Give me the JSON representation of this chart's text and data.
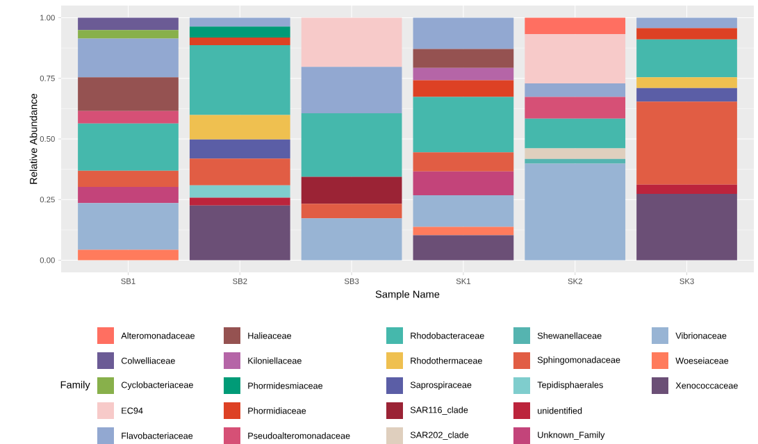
{
  "chart_data": {
    "type": "bar",
    "stacked": true,
    "xlabel": "Sample Name",
    "ylabel": "Relative Abundance",
    "legend_title": "Family",
    "legend": "bottom",
    "grid": true,
    "categories": [
      "SB1",
      "SB2",
      "SB3",
      "SK1",
      "SK2",
      "SK3"
    ],
    "ylim": [
      -0.05,
      1.05
    ],
    "yticks": [
      {
        "value": 0,
        "label": "0.00"
      },
      {
        "value": 0.25,
        "label": "0.25"
      },
      {
        "value": 0.5,
        "label": "0.50"
      },
      {
        "value": 0.75,
        "label": "0.75"
      },
      {
        "value": 1,
        "label": "1.00"
      }
    ],
    "series": [
      {
        "name": "Xenococcaceae",
        "color": "#6b4f76",
        "values": [
          null,
          0.226,
          null,
          0.103,
          null,
          0.274
        ]
      },
      {
        "name": "Woeseiaceae",
        "color": "#ff7b5c",
        "values": [
          0.043,
          null,
          null,
          0.035,
          null,
          null
        ]
      },
      {
        "name": "Vibrionaceae",
        "color": "#98b4d4",
        "values": [
          0.193,
          null,
          0.173,
          0.13,
          0.398,
          null
        ]
      },
      {
        "name": "Unknown_Family",
        "color": "#c3447a",
        "values": [
          0.066,
          null,
          null,
          0.098,
          null,
          null
        ]
      },
      {
        "name": "unidentified",
        "color": "#bc243c",
        "values": [
          null,
          0.032,
          null,
          null,
          null,
          0.038
        ]
      },
      {
        "name": "Tepidisphaerales",
        "color": "#7fcdcd",
        "values": [
          null,
          0.051,
          null,
          null,
          null,
          null
        ]
      },
      {
        "name": "Sphingomonadaceae",
        "color": "#e15d44",
        "values": [
          0.067,
          0.11,
          0.06,
          0.079,
          null,
          0.342
        ]
      },
      {
        "name": "Shewanellaceae",
        "color": "#55b4b0",
        "values": [
          null,
          null,
          null,
          null,
          0.02,
          null
        ]
      },
      {
        "name": "SAR202_clade",
        "color": "#dfcfbe",
        "values": [
          null,
          null,
          null,
          null,
          0.043,
          null
        ]
      },
      {
        "name": "SAR116_clade",
        "color": "#9b2335",
        "values": [
          null,
          null,
          0.111,
          null,
          null,
          null
        ]
      },
      {
        "name": "Saprospiraceae",
        "color": "#5b5ea6",
        "values": [
          null,
          0.079,
          null,
          null,
          null,
          0.056
        ]
      },
      {
        "name": "Rhodothermaceae",
        "color": "#efc050",
        "values": [
          null,
          0.101,
          null,
          null,
          null,
          0.044
        ]
      },
      {
        "name": "Rhodobacteraceae",
        "color": "#45b8ac",
        "values": [
          0.195,
          0.288,
          0.262,
          0.228,
          0.123,
          0.156
        ]
      },
      {
        "name": "Pseudoalteromonadaceae",
        "color": "#d65076",
        "values": [
          0.051,
          null,
          null,
          null,
          0.089,
          null
        ]
      },
      {
        "name": "Phormidiaceae",
        "color": "#dd4124",
        "values": [
          null,
          0.031,
          null,
          0.069,
          null,
          0.047
        ]
      },
      {
        "name": "Phormidesmiaceae",
        "color": "#009b77",
        "values": [
          null,
          0.045,
          null,
          null,
          null,
          null
        ]
      },
      {
        "name": "Kiloniellaceae",
        "color": "#b565a7",
        "values": [
          null,
          null,
          null,
          0.051,
          null,
          null
        ]
      },
      {
        "name": "Halieaceae",
        "color": "#955251",
        "values": [
          0.139,
          null,
          null,
          0.078,
          null,
          null
        ]
      },
      {
        "name": "Flavobacteriaceae",
        "color": "#92a8d1",
        "values": [
          0.16,
          0.037,
          0.191,
          0.129,
          0.056,
          0.043
        ]
      },
      {
        "name": "EC94",
        "color": "#f7cac9",
        "values": [
          null,
          null,
          0.203,
          null,
          0.203,
          null
        ]
      },
      {
        "name": "Cyclobacteriaceae",
        "color": "#88b04b",
        "values": [
          0.035,
          null,
          null,
          null,
          null,
          null
        ]
      },
      {
        "name": "Colwelliaceae",
        "color": "#6b5b95",
        "values": [
          0.051,
          null,
          null,
          null,
          null,
          null
        ]
      },
      {
        "name": "Alteromonadaceae",
        "color": "#ff6f61",
        "values": [
          null,
          null,
          null,
          null,
          0.068,
          null
        ]
      }
    ]
  }
}
